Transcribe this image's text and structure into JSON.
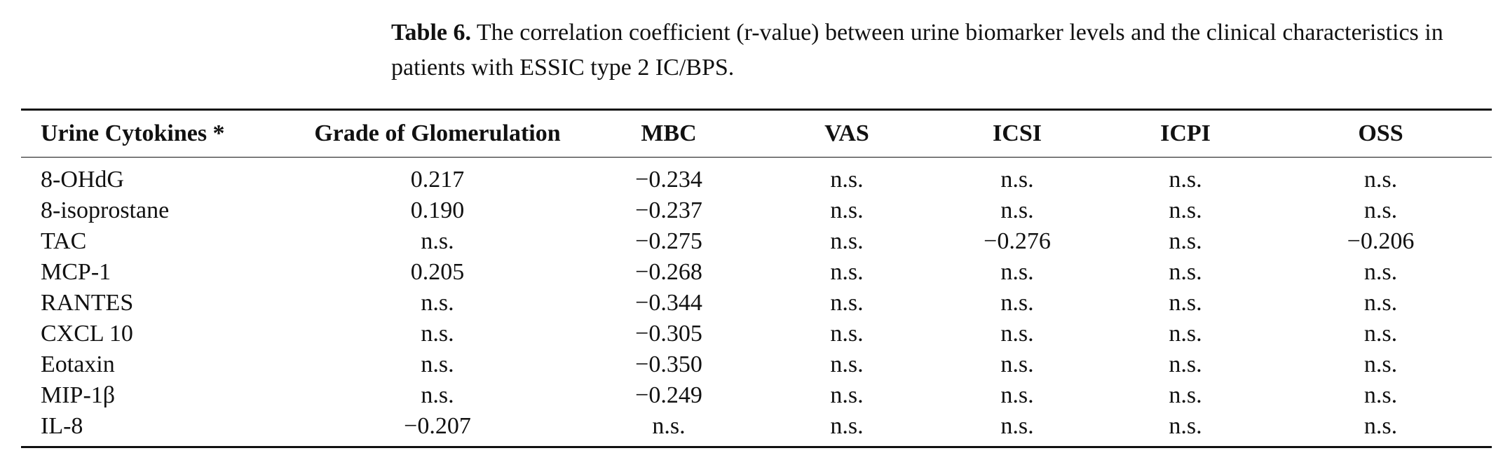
{
  "caption": {
    "label": "Table 6.",
    "text": "The correlation coefficient (r-value) between urine biomarker levels and the clinical characteristics in patients with ESSIC type 2 IC/BPS."
  },
  "table": {
    "headers": [
      "Urine Cytokines *",
      "Grade of Glomerulation",
      "MBC",
      "VAS",
      "ICSI",
      "ICPI",
      "OSS"
    ],
    "rows": [
      [
        "8-OHdG",
        "0.217",
        "−0.234",
        "n.s.",
        "n.s.",
        "n.s.",
        "n.s."
      ],
      [
        "8-isoprostane",
        "0.190",
        "−0.237",
        "n.s.",
        "n.s.",
        "n.s.",
        "n.s."
      ],
      [
        "TAC",
        "n.s.",
        "−0.275",
        "n.s.",
        "−0.276",
        "n.s.",
        "−0.206"
      ],
      [
        "MCP-1",
        "0.205",
        "−0.268",
        "n.s.",
        "n.s.",
        "n.s.",
        "n.s."
      ],
      [
        "RANTES",
        "n.s.",
        "−0.344",
        "n.s.",
        "n.s.",
        "n.s.",
        "n.s."
      ],
      [
        "CXCL 10",
        "n.s.",
        "−0.305",
        "n.s.",
        "n.s.",
        "n.s.",
        "n.s."
      ],
      [
        "Eotaxin",
        "n.s.",
        "−0.350",
        "n.s.",
        "n.s.",
        "n.s.",
        "n.s."
      ],
      [
        "MIP-1β",
        "n.s.",
        "−0.249",
        "n.s.",
        "n.s.",
        "n.s.",
        "n.s."
      ],
      [
        "IL-8",
        "−0.207",
        "n.s.",
        "n.s.",
        "n.s.",
        "n.s.",
        "n.s."
      ]
    ]
  }
}
